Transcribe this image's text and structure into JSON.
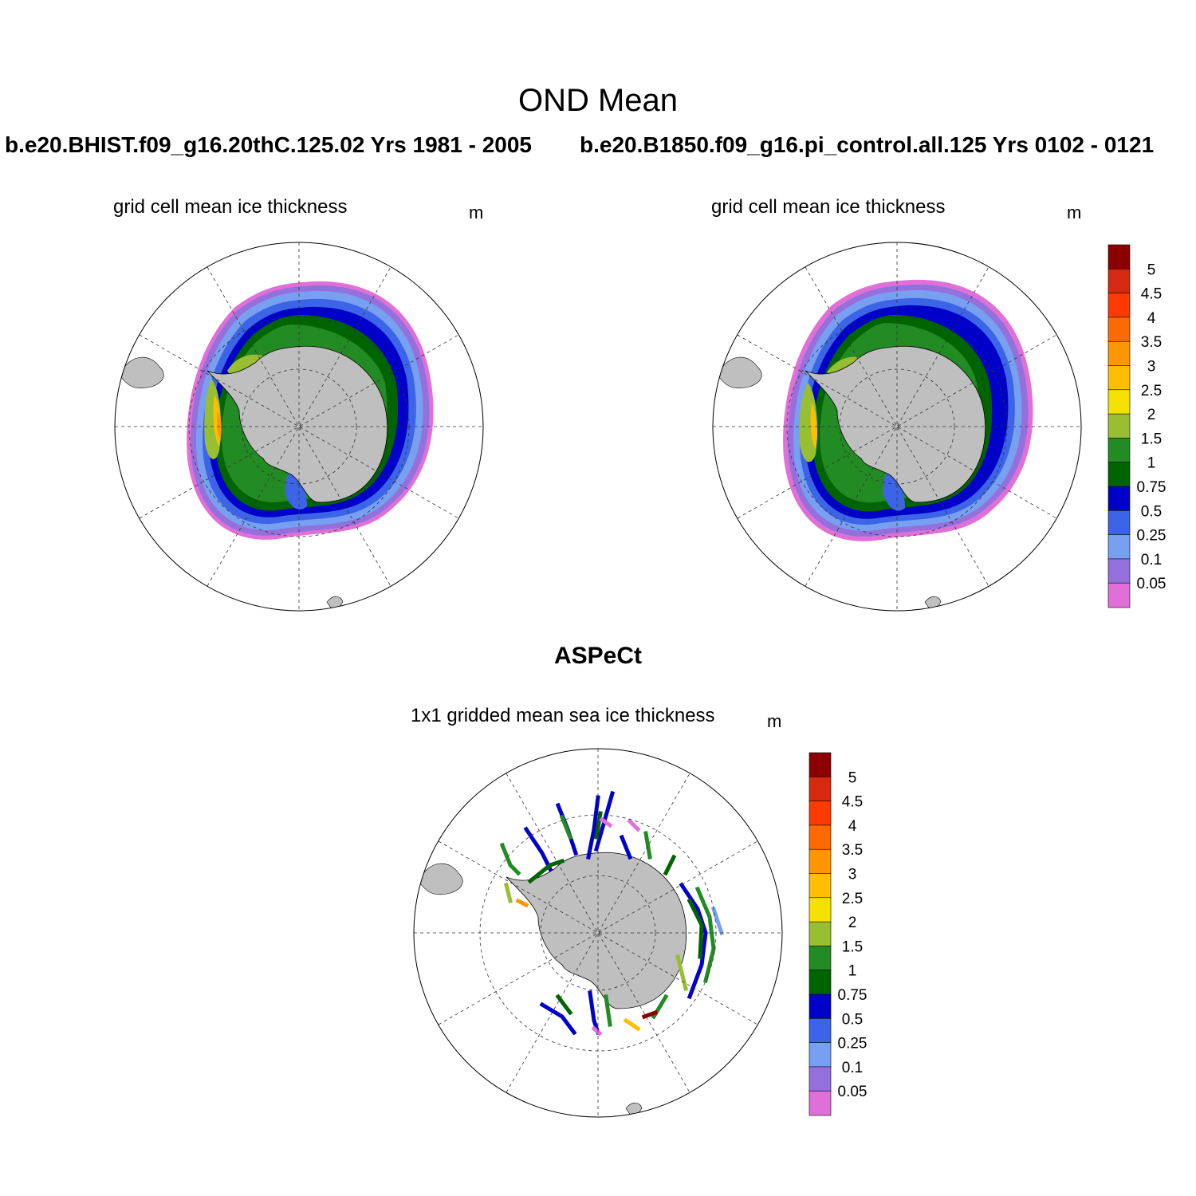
{
  "figure": {
    "title": "OND Mean",
    "panel_left": {
      "case": "b.e20.BHIST.f09_g16.20thC.125.02  Yrs 1981 - 2005",
      "variable": "grid cell mean ice thickness",
      "units": "m"
    },
    "panel_right": {
      "case": "b.e20.B1850.f09_g16.pi_control.all.125  Yrs 0102 - 0121",
      "variable": "grid cell mean ice thickness",
      "units": "m"
    },
    "panel_obs": {
      "source": "ASPeCt",
      "variable": "1x1 gridded mean sea ice thickness",
      "units": "m"
    }
  },
  "colorbar": {
    "levels": [
      "5",
      "4.5",
      "4",
      "3.5",
      "3",
      "2.5",
      "2",
      "1.5",
      "1",
      "0.75",
      "0.5",
      "0.25",
      "0.1",
      "0.05"
    ],
    "colors": [
      "#8b0000",
      "#d62a10",
      "#ff3a00",
      "#ff6a00",
      "#ff9600",
      "#ffbe00",
      "#f5e100",
      "#98bf32",
      "#238b23",
      "#006400",
      "#0000c8",
      "#3c64e6",
      "#78a0f0",
      "#9370db",
      "#e070d8"
    ]
  },
  "colors": {
    "land": "#bfbfbf",
    "ocean": "#ffffff",
    "frame": "#000000"
  },
  "chart_data": {
    "type": "heatmap",
    "projection": "south polar stereographic",
    "quantity": "sea ice thickness",
    "units": "m",
    "contour_levels": [
      0.05,
      0.1,
      0.25,
      0.5,
      0.75,
      1,
      1.5,
      2,
      2.5,
      3,
      3.5,
      4,
      4.5,
      5
    ],
    "panels": [
      "model 20thC 1981-2005",
      "pi_control 0102-0121",
      "ASPeCt observations"
    ]
  }
}
